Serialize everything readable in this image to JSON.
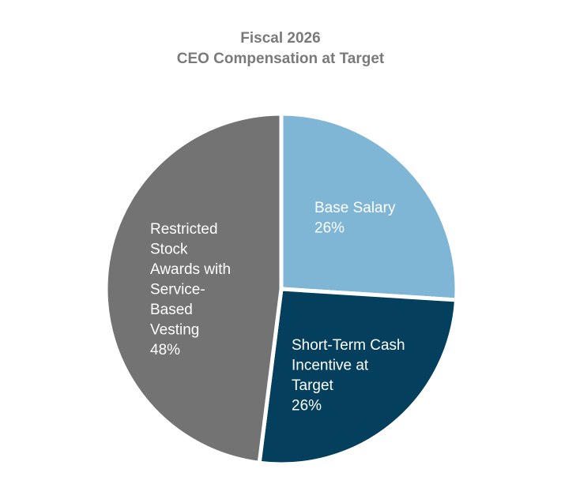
{
  "chart_data": {
    "type": "pie",
    "title": "Fiscal 2026",
    "subtitle": "CEO Compensation at Target",
    "slices": [
      {
        "name": "Base Salary",
        "value": 26,
        "label_lines": [
          "Base Salary",
          "26%"
        ],
        "color": "#7fb6d5"
      },
      {
        "name": "Short-Term Cash Incentive at Target",
        "value": 26,
        "label_lines": [
          "Short-Term Cash",
          "Incentive at",
          "Target",
          "26%"
        ],
        "color": "#04405d"
      },
      {
        "name": "Restricted Stock Awards with Service-Based Vesting",
        "value": 48,
        "label_lines": [
          "Restricted",
          "Stock",
          "Awards with",
          "Service-",
          "Based",
          "Vesting",
          "48%"
        ],
        "color": "#737373"
      }
    ]
  },
  "colors": {
    "title": "#7a7a7a",
    "separator": "#ffffff",
    "label_text": "#ffffff"
  }
}
